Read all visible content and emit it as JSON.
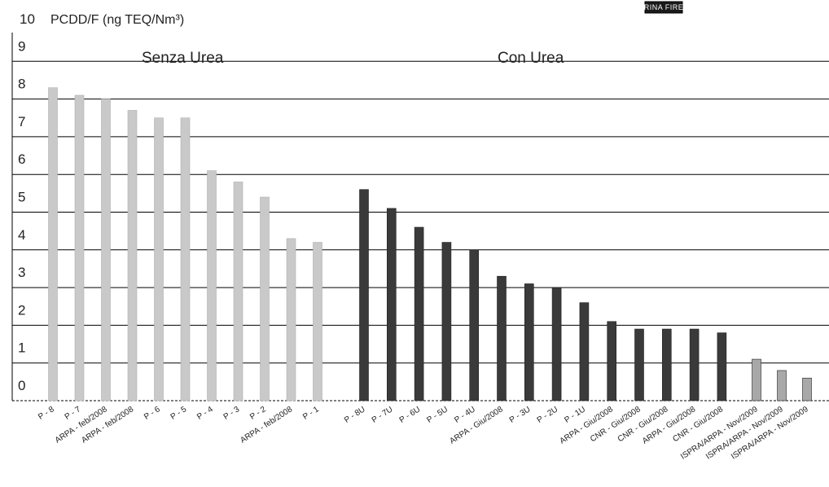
{
  "brand": "RINA FIRE",
  "chart_data": {
    "type": "bar",
    "ylabel": "PCDD/F (ng TEQ/Nm³)",
    "ylim": [
      0,
      10
    ],
    "yticks": [
      0,
      1,
      2,
      3,
      4,
      5,
      6,
      7,
      8,
      9,
      10
    ],
    "grid": true,
    "groups": [
      {
        "name": "Senza Urea",
        "color": "#c9c9c9",
        "categories": [
          "P - 8",
          "P - 7",
          "ARPA - feb/2008",
          "ARPA - feb/2008",
          "P - 6",
          "P - 5",
          "P - 4",
          "P - 3",
          "P - 2",
          "ARPA - feb/2008",
          "P - 1"
        ],
        "values": [
          8.3,
          8.1,
          8.0,
          7.7,
          7.5,
          7.5,
          6.1,
          5.8,
          5.4,
          4.3,
          4.2
        ]
      },
      {
        "name": "Con Urea",
        "color": "#3a3a3a",
        "categories": [
          "P - 8U",
          "P - 7U",
          "P - 6U",
          "P - 5U",
          "P - 4U",
          "ARPA - Giu/2008",
          "P - 3U",
          "P - 2U",
          "P - 1U",
          "ARPA - Giu/2008",
          "CNR - Giu/2008",
          "CNR - Giu/2008",
          "ARPA - Giu/2008",
          "CNR - Giu/2008"
        ],
        "values": [
          5.6,
          5.1,
          4.6,
          4.2,
          4.0,
          3.3,
          3.1,
          3.0,
          2.6,
          2.1,
          1.9,
          1.9,
          1.9,
          1.8
        ]
      },
      {
        "name": "",
        "color": "#a8a8a8",
        "categories": [
          "ISPRA/ARPA - Nov/2009",
          "ISPRA/ARPA - Nov/2009",
          "ISPRA/ARPA - Nov/2009"
        ],
        "values": [
          1.1,
          0.8,
          0.6
        ]
      }
    ]
  }
}
